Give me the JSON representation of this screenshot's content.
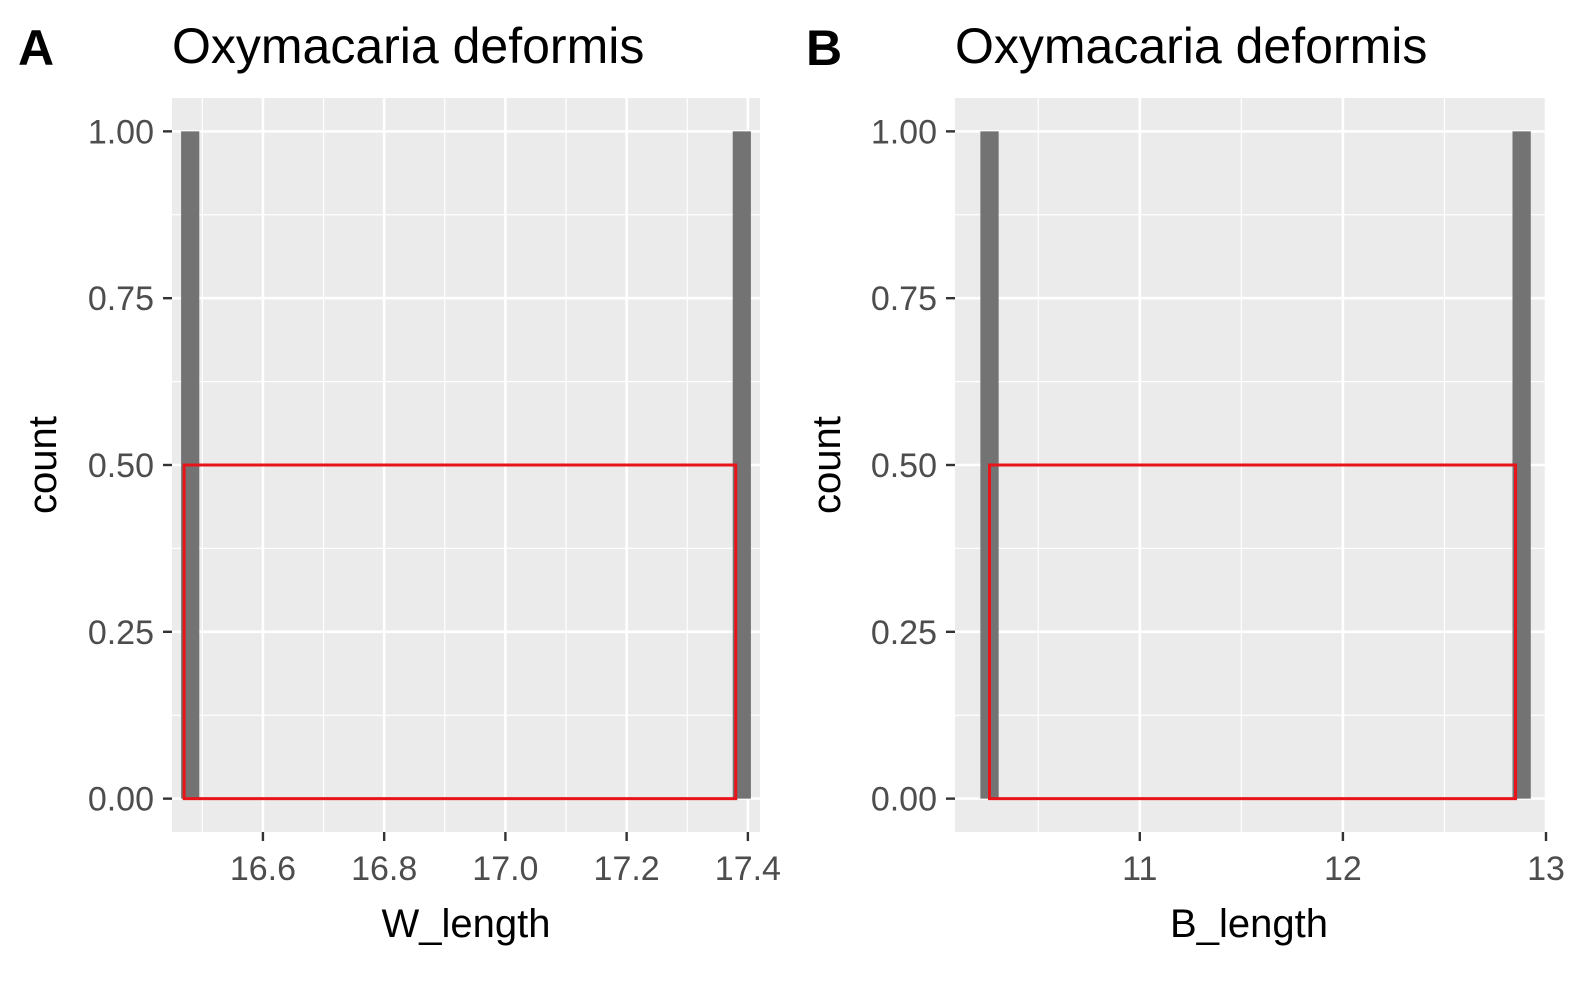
{
  "figure": {
    "panels": [
      {
        "tag": "A",
        "title": "Oxymacaria deformis"
      },
      {
        "tag": "B",
        "title": "Oxymacaria deformis"
      }
    ]
  },
  "chart_data": [
    {
      "type": "bar",
      "panel": "A",
      "title": "Oxymacaria deformis",
      "xlabel": "W_length",
      "ylabel": "count",
      "xlim": [
        16.45,
        17.42
      ],
      "ylim": [
        -0.05,
        1.05
      ],
      "x_ticks": [
        16.6,
        16.8,
        17.0,
        17.2,
        17.4
      ],
      "x_tick_labels": [
        "16.6",
        "16.8",
        "17.0",
        "17.2",
        "17.4"
      ],
      "y_ticks": [
        0,
        0.25,
        0.5,
        0.75,
        1
      ],
      "y_tick_labels": [
        "0.00",
        "0.25",
        "0.50",
        "0.75",
        "1.00"
      ],
      "bars": [
        {
          "x": 16.48,
          "width": 0.03,
          "count": 1
        },
        {
          "x": 17.39,
          "width": 0.03,
          "count": 1
        }
      ],
      "highlight_box": {
        "x0": 16.47,
        "x1": 17.38,
        "y0": 0,
        "y1": 0.5,
        "color": "#e8141a"
      },
      "colors": {
        "bar": "#737373",
        "panel_bg": "#ebebeb",
        "grid": "#ffffff"
      },
      "grid": true
    },
    {
      "type": "bar",
      "panel": "B",
      "title": "Oxymacaria deformis",
      "xlabel": "B_length",
      "ylabel": "count",
      "xlim": [
        10.09,
        13.0
      ],
      "ylim": [
        -0.05,
        1.05
      ],
      "x_ticks": [
        11,
        12,
        13
      ],
      "x_tick_labels": [
        "11",
        "12",
        "13"
      ],
      "y_ticks": [
        0,
        0.25,
        0.5,
        0.75,
        1
      ],
      "y_tick_labels": [
        "0.00",
        "0.25",
        "0.50",
        "0.75",
        "1.00"
      ],
      "bars": [
        {
          "x": 10.26,
          "width": 0.09,
          "count": 1
        },
        {
          "x": 12.88,
          "width": 0.09,
          "count": 1
        }
      ],
      "highlight_box": {
        "x0": 10.26,
        "x1": 12.85,
        "y0": 0,
        "y1": 0.5,
        "color": "#e8141a"
      },
      "colors": {
        "bar": "#737373",
        "panel_bg": "#ebebeb",
        "grid": "#ffffff"
      },
      "grid": true
    }
  ]
}
